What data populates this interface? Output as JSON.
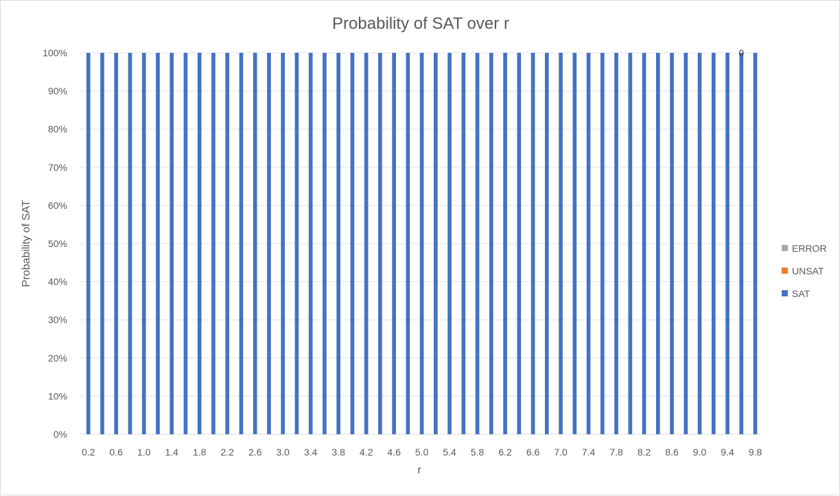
{
  "chart_data": {
    "type": "bar",
    "stacked": true,
    "normalized": true,
    "title": "Probability of SAT over r",
    "xlabel": "r",
    "ylabel": "Probability of SAT",
    "ylim": [
      0,
      100
    ],
    "yticks": [
      "0%",
      "10%",
      "20%",
      "30%",
      "40%",
      "50%",
      "60%",
      "70%",
      "80%",
      "90%",
      "100%"
    ],
    "categories": [
      "0.2",
      "0.4",
      "0.6",
      "0.8",
      "1.0",
      "1.2",
      "1.4",
      "1.6",
      "1.8",
      "2.0",
      "2.2",
      "2.4",
      "2.6",
      "2.8",
      "3.0",
      "3.2",
      "3.4",
      "3.6",
      "3.8",
      "4.0",
      "4.2",
      "4.4",
      "4.6",
      "4.8",
      "5.0",
      "5.2",
      "5.4",
      "5.6",
      "5.8",
      "6.0",
      "6.2",
      "6.4",
      "6.6",
      "6.8",
      "7.0",
      "7.2",
      "7.4",
      "7.6",
      "7.8",
      "8.0",
      "8.2",
      "8.4",
      "8.6",
      "8.8",
      "9.0",
      "9.2",
      "9.4",
      "9.6",
      "9.8"
    ],
    "x_tick_labels": [
      "0.2",
      "0.6",
      "1.0",
      "1.4",
      "1.8",
      "2.2",
      "2.6",
      "3.0",
      "3.4",
      "3.8",
      "4.2",
      "4.6",
      "5.0",
      "5.4",
      "5.8",
      "6.2",
      "6.6",
      "7.0",
      "7.4",
      "7.8",
      "8.2",
      "8.6",
      "9.0",
      "9.4",
      "9.8"
    ],
    "series": [
      {
        "name": "SAT",
        "color": "#4472c4",
        "values": [
          100,
          100,
          100,
          100,
          100,
          100,
          100,
          100,
          100,
          100,
          100,
          100,
          100,
          100,
          100,
          100,
          100,
          100,
          100,
          100,
          100,
          100,
          100,
          100,
          100,
          100,
          100,
          100,
          100,
          100,
          100,
          100,
          100,
          100,
          100,
          100,
          100,
          100,
          100,
          100,
          100,
          100,
          100,
          100,
          100,
          100,
          100,
          100,
          100
        ]
      },
      {
        "name": "UNSAT",
        "color": "#ed7d31",
        "values": [
          0,
          0,
          0,
          0,
          0,
          0,
          0,
          0,
          0,
          0,
          0,
          0,
          0,
          0,
          0,
          0,
          0,
          0,
          0,
          0,
          0,
          0,
          0,
          0,
          0,
          0,
          0,
          0,
          0,
          0,
          0,
          0,
          0,
          0,
          0,
          0,
          0,
          0,
          0,
          0,
          0,
          0,
          0,
          0,
          0,
          0,
          0,
          0,
          0
        ]
      },
      {
        "name": "ERROR",
        "color": "#a5a5a5",
        "values": [
          0,
          0,
          0,
          0,
          0,
          0,
          0,
          0,
          0,
          0,
          0,
          0,
          0,
          0,
          0,
          0,
          0,
          0,
          0,
          0,
          0,
          0,
          0,
          0,
          0,
          0,
          0,
          0,
          0,
          0,
          0,
          0,
          0,
          0,
          0,
          0,
          0,
          0,
          0,
          0,
          0,
          0,
          0,
          0,
          0,
          0,
          0,
          0,
          0
        ]
      }
    ],
    "data_labels": [
      {
        "category": "9.6",
        "text": "0"
      }
    ],
    "legend": {
      "position": "right",
      "order": [
        "ERROR",
        "UNSAT",
        "SAT"
      ]
    },
    "grid": true
  }
}
